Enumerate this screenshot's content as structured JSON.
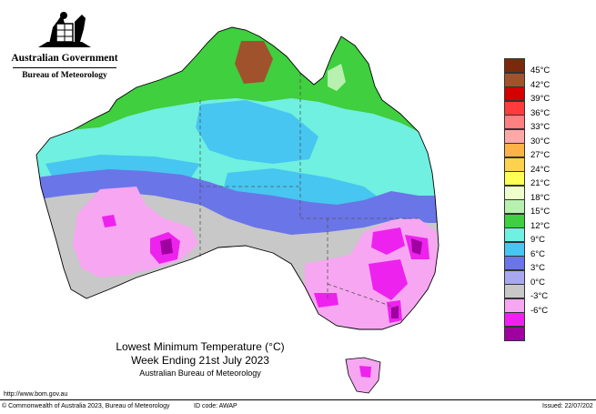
{
  "header": {
    "government": "Australian Government",
    "bureau": "Bureau of Meteorology"
  },
  "legend": {
    "items": [
      {
        "label": "45°C",
        "color": "#7a2a0a"
      },
      {
        "label": "42°C",
        "color": "#a0522d"
      },
      {
        "label": "39°C",
        "color": "#d40000"
      },
      {
        "label": "36°C",
        "color": "#ff3b3b"
      },
      {
        "label": "33°C",
        "color": "#ff8080"
      },
      {
        "label": "30°C",
        "color": "#ffa8a8"
      },
      {
        "label": "27°C",
        "color": "#ffb347"
      },
      {
        "label": "24°C",
        "color": "#ffd24d"
      },
      {
        "label": "21°C",
        "color": "#ffff55"
      },
      {
        "label": "18°C",
        "color": "#eeffcc"
      },
      {
        "label": "15°C",
        "color": "#b8f0b0"
      },
      {
        "label": "12°C",
        "color": "#3fcf3f"
      },
      {
        "label": "9°C",
        "color": "#6ff0e0"
      },
      {
        "label": "6°C",
        "color": "#46c6f0"
      },
      {
        "label": "3°C",
        "color": "#6a75e8"
      },
      {
        "label": "0°C",
        "color": "#a8a8f0"
      },
      {
        "label": "-3°C",
        "color": "#c8c8c8"
      },
      {
        "label": "-6°C",
        "color": "#f7a6f2"
      }
    ],
    "extra_colors": [
      "#ee22ee",
      "#a000a0"
    ]
  },
  "map_colors": {
    "green": "#3fcf3f",
    "light_green": "#b8f0b0",
    "olive": "#a0522d",
    "aqua": "#6ff0e0",
    "sky": "#46c6f0",
    "blue": "#6a75e8",
    "grey": "#c8c8c8",
    "pink": "#f7a6f2",
    "magenta": "#ee22ee",
    "purple": "#a000a0"
  },
  "title": {
    "line1": "Lowest Minimum Temperature (°C)",
    "line2": "Week Ending 21st July 2023",
    "line3": "Australian Bureau of Meteorology"
  },
  "footer": {
    "url": "http://www.bom.gov.au",
    "copyright": "© Commonwealth of Australia 2023, Bureau of Meteorology",
    "id_code": "ID code: AWAP",
    "issued": "Issued: 22/07/202"
  }
}
